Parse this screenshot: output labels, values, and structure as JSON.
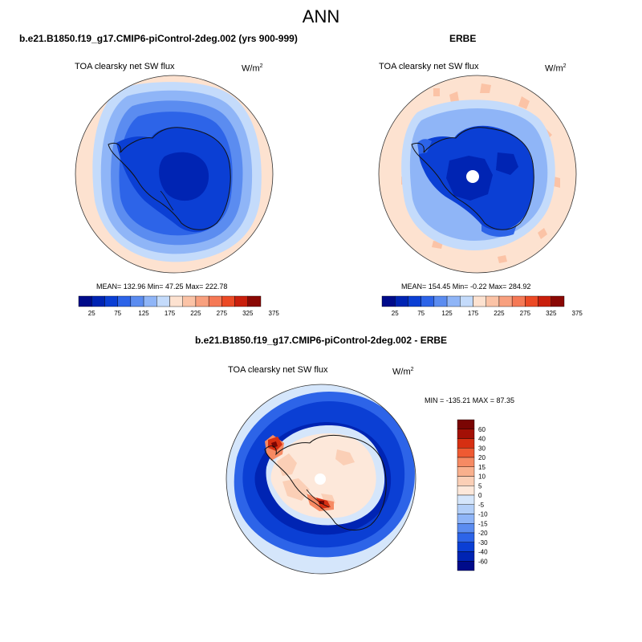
{
  "main_title": "ANN",
  "colors": {
    "level_colors": [
      "#000b8a",
      "#0024b3",
      "#0b3fd4",
      "#2d64e8",
      "#5b8cf0",
      "#8fb5f7",
      "#c4dbfb",
      "#fde2d0",
      "#fbc3a6",
      "#f8a07e",
      "#f57955",
      "#ec4a25",
      "#c91f0c",
      "#8a0804"
    ],
    "diff_colors": [
      "#000b8a",
      "#0024b3",
      "#0b3fd4",
      "#2d64e8",
      "#5b8cf0",
      "#8fb5f7",
      "#b3cff8",
      "#d5e6fb",
      "#fde8da",
      "#fbcfb6",
      "#f9b08d",
      "#f68a63",
      "#ef5a32",
      "#d62f12",
      "#a31005",
      "#7a0503"
    ],
    "land_outline": "#111111"
  },
  "chart_data": [
    {
      "type": "heatmap",
      "title": "b.e21.B1850.f19_g17.CMIP6-piControl-2deg.002 (yrs 900-999)",
      "variable": "TOA clearsky net SW flux",
      "units_base": "W/m",
      "units_exp": "2",
      "stats_text": "MEAN= 132.96  Min=  47.25  Max= 222.78",
      "mean": 132.96,
      "min": 47.25,
      "max": 222.78,
      "colorbar_levels": [
        25,
        50,
        75,
        100,
        125,
        150,
        175,
        200,
        225,
        250,
        275,
        300,
        325,
        350,
        375
      ],
      "colorbar_tick_labels": [
        "25",
        "75",
        "125",
        "175",
        "225",
        "275",
        "325",
        "375"
      ]
    },
    {
      "type": "heatmap",
      "title": "ERBE",
      "variable": "TOA clearsky net SW flux",
      "units_base": "W/m",
      "units_exp": "2",
      "stats_text": "MEAN= 154.45  Min=  -0.22  Max= 284.92",
      "mean": 154.45,
      "min": -0.22,
      "max": 284.92,
      "colorbar_levels": [
        25,
        50,
        75,
        100,
        125,
        150,
        175,
        200,
        225,
        250,
        275,
        300,
        325,
        350,
        375
      ],
      "colorbar_tick_labels": [
        "25",
        "75",
        "125",
        "175",
        "225",
        "275",
        "325",
        "375"
      ]
    },
    {
      "type": "heatmap",
      "title": "b.e21.B1850.f19_g17.CMIP6-piControl-2deg.002 - ERBE",
      "variable": "TOA clearsky net SW flux",
      "units_base": "W/m",
      "units_exp": "2",
      "stats_text": "MIN = -135.21 MAX =  87.35",
      "min": -135.21,
      "max": 87.35,
      "colorbar_levels": [
        60,
        40,
        30,
        20,
        15,
        10,
        5,
        0,
        -5,
        -10,
        -15,
        -20,
        -30,
        -40,
        -60
      ],
      "colorbar_tick_labels": [
        "60",
        "40",
        "30",
        "20",
        "15",
        "10",
        "5",
        "0",
        "-5",
        "-10",
        "-15",
        "-20",
        "-30",
        "-40",
        "-60"
      ]
    }
  ]
}
